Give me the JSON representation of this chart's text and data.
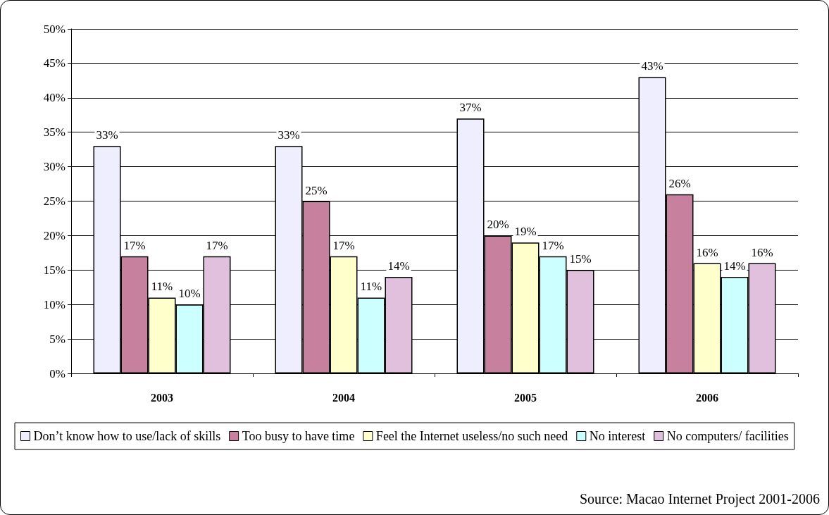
{
  "chart_data": {
    "type": "bar",
    "categories": [
      "2003",
      "2004",
      "2005",
      "2006"
    ],
    "series": [
      {
        "name": "Don’t know how to use/lack of skills",
        "color": "#eeeeff",
        "values": [
          33,
          33,
          37,
          43
        ],
        "value_labels": [
          "33%",
          "33%",
          "37%",
          "43%"
        ]
      },
      {
        "name": "Too busy to have time",
        "color": "#c8809f",
        "values": [
          17,
          25,
          20,
          26
        ],
        "value_labels": [
          "17%",
          "25%",
          "20%",
          "26%"
        ]
      },
      {
        "name": "Feel the Internet useless/no such need",
        "color": "#ffffcc",
        "values": [
          11,
          17,
          19,
          16
        ],
        "value_labels": [
          "11%",
          "17%",
          "19%",
          "16%"
        ]
      },
      {
        "name": "No interest",
        "color": "#ccffff",
        "values": [
          10,
          11,
          17,
          14
        ],
        "value_labels": [
          "10%",
          "11%",
          "17%",
          "14%"
        ]
      },
      {
        "name": "No computers/ facilities",
        "color": "#e0c0dc",
        "values": [
          17,
          14,
          15,
          16
        ],
        "value_labels": [
          "17%",
          "14%",
          "15%",
          "16%"
        ]
      }
    ],
    "ylim": [
      0,
      50
    ],
    "yticks": [
      {
        "value": 0,
        "label": "0%"
      },
      {
        "value": 5,
        "label": "5%"
      },
      {
        "value": 10,
        "label": "10%"
      },
      {
        "value": 15,
        "label": "15%"
      },
      {
        "value": 20,
        "label": "20%"
      },
      {
        "value": 25,
        "label": "25%"
      },
      {
        "value": 30,
        "label": "30%"
      },
      {
        "value": 35,
        "label": "35%"
      },
      {
        "value": 40,
        "label": "40%"
      },
      {
        "value": 45,
        "label": "45%"
      },
      {
        "value": 50,
        "label": "50%"
      }
    ],
    "grid": "y",
    "legend": "bottom",
    "annotations": [
      "Source: Macao Internet Project 2001-2006"
    ]
  }
}
